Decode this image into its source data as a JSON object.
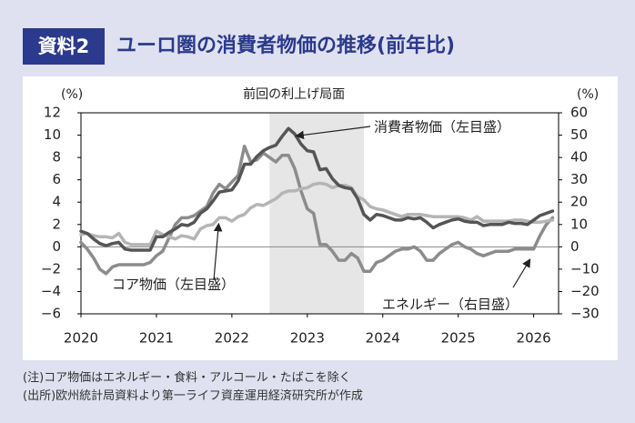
{
  "header": {
    "badge": "資料2",
    "title": "ユーロ圏の消費者物価の推移(前年比)"
  },
  "notes": {
    "note": "(注)コア物価はエネルギー・食料・アルコール・たばこを除く",
    "source": "(出所)欧州統計局資料より第一ライフ資産運用経済研究所が作成"
  },
  "colors": {
    "accent": "#2b3a8c",
    "background": "#dfe1f0",
    "shade": "#e6e6e6",
    "headline": "#555555",
    "core": "#b5b5b5",
    "energy": "#8c8c8c"
  },
  "chart_data": {
    "type": "line",
    "left_unit": "(%)",
    "right_unit": "(%)",
    "shaded_label": "前回の利上げ局面",
    "shaded_range": [
      2022.5,
      2023.75
    ],
    "xlim": [
      2020.0,
      2026.33
    ],
    "ylim_left": [
      -6,
      12
    ],
    "ylim_right": [
      -30,
      60
    ],
    "left_ticks": [
      12,
      10,
      8,
      6,
      4,
      2,
      0,
      -2,
      -4,
      -6
    ],
    "right_ticks": [
      60,
      50,
      40,
      30,
      20,
      10,
      0,
      -10,
      -20,
      -30
    ],
    "x_ticks": [
      "2020",
      "2021",
      "2022",
      "2023",
      "2024",
      "2025",
      "2026"
    ],
    "series": [
      {
        "name": "消費者物価",
        "label": "消費者物価（左目盛）",
        "axis": "left",
        "x": [
          2020.0,
          2020.083,
          2020.167,
          2020.25,
          2020.333,
          2020.417,
          2020.5,
          2020.583,
          2020.667,
          2020.75,
          2020.833,
          2020.917,
          2021.0,
          2021.083,
          2021.167,
          2021.25,
          2021.333,
          2021.417,
          2021.5,
          2021.583,
          2021.667,
          2021.75,
          2021.833,
          2021.917,
          2022.0,
          2022.083,
          2022.167,
          2022.25,
          2022.333,
          2022.417,
          2022.5,
          2022.583,
          2022.667,
          2022.75,
          2022.833,
          2022.917,
          2023.0,
          2023.083,
          2023.167,
          2023.25,
          2023.333,
          2023.417,
          2023.5,
          2023.583,
          2023.667,
          2023.75,
          2023.833,
          2023.917,
          2024.0,
          2024.083,
          2024.167,
          2024.25,
          2024.333,
          2024.417,
          2024.5,
          2024.583,
          2024.667,
          2024.75,
          2024.833,
          2024.917,
          2025.0,
          2025.083,
          2025.167,
          2025.25,
          2025.333,
          2025.417,
          2025.5,
          2025.583,
          2025.667,
          2025.75,
          2025.833,
          2025.917,
          2026.0,
          2026.083,
          2026.167,
          2026.25
        ],
        "values": [
          1.4,
          1.2,
          0.7,
          0.3,
          0.1,
          0.3,
          0.4,
          -0.2,
          -0.3,
          -0.3,
          -0.3,
          -0.3,
          0.9,
          0.9,
          1.3,
          1.6,
          2.0,
          1.9,
          2.2,
          3.0,
          3.4,
          4.1,
          4.9,
          5.0,
          5.1,
          5.9,
          7.4,
          7.4,
          8.1,
          8.6,
          8.9,
          9.1,
          9.9,
          10.6,
          10.1,
          9.2,
          8.6,
          8.5,
          6.9,
          7.0,
          6.1,
          5.5,
          5.3,
          5.2,
          4.3,
          2.9,
          2.4,
          2.9,
          2.8,
          2.6,
          2.4,
          2.4,
          2.6,
          2.5,
          2.6,
          2.2,
          1.7,
          2.0,
          2.2,
          2.4,
          2.5,
          2.3,
          2.2,
          2.2,
          1.9,
          2.0,
          2.0,
          2.0,
          2.2,
          2.1,
          2.1,
          2.0,
          2.4,
          2.8,
          3.0,
          3.2
        ]
      },
      {
        "name": "コア物価",
        "label": "コア物価（左目盛）",
        "axis": "left",
        "x": [
          2020.0,
          2020.083,
          2020.167,
          2020.25,
          2020.333,
          2020.417,
          2020.5,
          2020.583,
          2020.667,
          2020.75,
          2020.833,
          2020.917,
          2021.0,
          2021.083,
          2021.167,
          2021.25,
          2021.333,
          2021.417,
          2021.5,
          2021.583,
          2021.667,
          2021.75,
          2021.833,
          2021.917,
          2022.0,
          2022.083,
          2022.167,
          2022.25,
          2022.333,
          2022.417,
          2022.5,
          2022.583,
          2022.667,
          2022.75,
          2022.833,
          2022.917,
          2023.0,
          2023.083,
          2023.167,
          2023.25,
          2023.333,
          2023.417,
          2023.5,
          2023.583,
          2023.667,
          2023.75,
          2023.833,
          2023.917,
          2024.0,
          2024.083,
          2024.167,
          2024.25,
          2024.333,
          2024.417,
          2024.5,
          2024.583,
          2024.667,
          2024.75,
          2024.833,
          2024.917,
          2025.0,
          2025.083,
          2025.167,
          2025.25,
          2025.333,
          2025.417,
          2025.5,
          2025.583,
          2025.667,
          2025.75,
          2025.833,
          2025.917,
          2026.0,
          2026.083,
          2026.167,
          2026.25
        ],
        "values": [
          1.1,
          1.2,
          1.0,
          0.9,
          0.9,
          0.8,
          1.2,
          0.4,
          0.2,
          0.2,
          0.2,
          0.2,
          1.4,
          1.1,
          0.9,
          0.7,
          1.0,
          0.9,
          0.7,
          1.6,
          1.9,
          2.0,
          2.6,
          2.6,
          2.3,
          2.7,
          2.9,
          3.5,
          3.8,
          3.7,
          4.0,
          4.3,
          4.8,
          5.0,
          5.0,
          5.2,
          5.3,
          5.6,
          5.7,
          5.6,
          5.3,
          5.5,
          5.5,
          5.3,
          4.5,
          4.2,
          3.6,
          3.4,
          3.3,
          3.1,
          2.9,
          2.7,
          2.9,
          2.9,
          2.9,
          2.8,
          2.7,
          2.7,
          2.7,
          2.7,
          2.7,
          2.6,
          2.4,
          2.7,
          2.3,
          2.3,
          2.3,
          2.3,
          2.3,
          2.4,
          2.4,
          2.3,
          2.2,
          2.2,
          2.3,
          2.4
        ]
      },
      {
        "name": "エネルギー",
        "label": "エネルギー（右目盛）",
        "axis": "right",
        "x": [
          2020.0,
          2020.083,
          2020.167,
          2020.25,
          2020.333,
          2020.417,
          2020.5,
          2020.583,
          2020.667,
          2020.75,
          2020.833,
          2020.917,
          2021.0,
          2021.083,
          2021.167,
          2021.25,
          2021.333,
          2021.417,
          2021.5,
          2021.583,
          2021.667,
          2021.75,
          2021.833,
          2021.917,
          2022.0,
          2022.083,
          2022.167,
          2022.25,
          2022.333,
          2022.417,
          2022.5,
          2022.583,
          2022.667,
          2022.75,
          2022.833,
          2022.917,
          2023.0,
          2023.083,
          2023.167,
          2023.25,
          2023.333,
          2023.417,
          2023.5,
          2023.583,
          2023.667,
          2023.75,
          2023.833,
          2023.917,
          2024.0,
          2024.083,
          2024.167,
          2024.25,
          2024.333,
          2024.417,
          2024.5,
          2024.583,
          2024.667,
          2024.75,
          2024.833,
          2024.917,
          2025.0,
          2025.083,
          2025.167,
          2025.25,
          2025.333,
          2025.417,
          2025.5,
          2025.583,
          2025.667,
          2025.75,
          2025.833,
          2025.917,
          2026.0,
          2026.083,
          2026.167,
          2026.25
        ],
        "values": [
          2,
          -1,
          -5,
          -10,
          -12,
          -9,
          -8,
          -8,
          -8,
          -8,
          -8,
          -7,
          -4,
          -2,
          4,
          10,
          13,
          13,
          14,
          16,
          18,
          24,
          28,
          26,
          29,
          32,
          45,
          38,
          39,
          42,
          40,
          38,
          41,
          41,
          35,
          25,
          17,
          15,
          1,
          1,
          -2,
          -6,
          -6,
          -3,
          -5,
          -11,
          -11,
          -7,
          -6,
          -4,
          -2,
          -1,
          -1,
          0,
          -2,
          -6,
          -6,
          -3,
          -1,
          1,
          2,
          0,
          -1,
          -3,
          -4,
          -3,
          -2,
          -2,
          -2,
          -1,
          -1,
          -1,
          -1,
          5,
          10,
          13
        ]
      }
    ]
  }
}
